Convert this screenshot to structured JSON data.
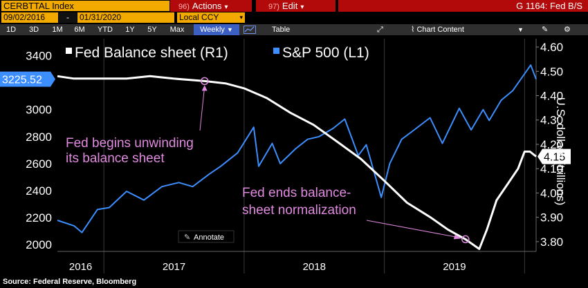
{
  "toolbar": {
    "ticker": "CERBTTAL Index",
    "actions_key": "96)",
    "actions_label": "Actions",
    "edit_key": "97)",
    "edit_label": "Edit",
    "page_title": "G 1164: Fed B/S",
    "date_from": "09/02/2016",
    "date_sep": "-",
    "date_to": "01/31/2020",
    "currency": "Local CCY",
    "periods": [
      "1D",
      "3D",
      "1M",
      "6M",
      "YTD",
      "1Y",
      "5Y",
      "Max"
    ],
    "frequency": "Weekly",
    "table_label": "Table",
    "chart_content_label": "Chart Content"
  },
  "colors": {
    "accent": "#f2a900",
    "button_red": "#b20a0a",
    "fed_series": "#ffffff",
    "spx_series": "#3d8fff",
    "annotation": "#e08ae0"
  },
  "chart_data": {
    "type": "line",
    "legend": [
      "Fed Balance sheet (R1)",
      "S&P 500 (L1)"
    ],
    "y_left": {
      "min": 1950,
      "max": 3500,
      "ticks": [
        2000,
        2200,
        2400,
        2600,
        2800,
        3000,
        3200,
        3400
      ]
    },
    "y_right": {
      "label": "U.S. dollars (trillions)",
      "min": 3.76,
      "max": 4.62,
      "ticks": [
        "3.80",
        "3.90",
        "4.00",
        "4.10",
        "4.20",
        "4.30",
        "4.40",
        "4.50",
        "4.60"
      ]
    },
    "x": {
      "start": "2016-09-02",
      "end": "2020-01-31",
      "labels": [
        "2016",
        "2017",
        "2018",
        "2019"
      ]
    },
    "last_values": {
      "left": "3225.52",
      "right": "4.15"
    },
    "series": [
      {
        "name": "S&P 500 (L1)",
        "axis": "left",
        "points": [
          [
            "2016-09-02",
            2180
          ],
          [
            "2016-10-15",
            2140
          ],
          [
            "2016-11-05",
            2090
          ],
          [
            "2016-12-15",
            2260
          ],
          [
            "2017-01-15",
            2275
          ],
          [
            "2017-03-01",
            2395
          ],
          [
            "2017-04-15",
            2330
          ],
          [
            "2017-06-01",
            2430
          ],
          [
            "2017-07-15",
            2460
          ],
          [
            "2017-08-20",
            2430
          ],
          [
            "2017-10-01",
            2520
          ],
          [
            "2017-11-01",
            2580
          ],
          [
            "2017-12-15",
            2680
          ],
          [
            "2018-01-26",
            2870
          ],
          [
            "2018-02-08",
            2580
          ],
          [
            "2018-03-15",
            2750
          ],
          [
            "2018-04-05",
            2600
          ],
          [
            "2018-05-15",
            2710
          ],
          [
            "2018-06-15",
            2780
          ],
          [
            "2018-07-15",
            2800
          ],
          [
            "2018-08-20",
            2860
          ],
          [
            "2018-09-20",
            2930
          ],
          [
            "2018-10-25",
            2660
          ],
          [
            "2018-11-15",
            2740
          ],
          [
            "2018-12-24",
            2350
          ],
          [
            "2019-01-15",
            2600
          ],
          [
            "2019-02-15",
            2780
          ],
          [
            "2019-03-15",
            2840
          ],
          [
            "2019-04-30",
            2940
          ],
          [
            "2019-06-01",
            2750
          ],
          [
            "2019-07-15",
            3010
          ],
          [
            "2019-08-15",
            2850
          ],
          [
            "2019-09-15",
            3000
          ],
          [
            "2019-10-01",
            2920
          ],
          [
            "2019-11-01",
            3070
          ],
          [
            "2019-12-01",
            3140
          ],
          [
            "2020-01-17",
            3330
          ],
          [
            "2020-01-31",
            3225.52
          ]
        ]
      },
      {
        "name": "Fed Balance sheet (R1)",
        "axis": "right",
        "points": [
          [
            "2016-09-02",
            4.48
          ],
          [
            "2016-10-15",
            4.47
          ],
          [
            "2016-12-01",
            4.47
          ],
          [
            "2017-01-15",
            4.47
          ],
          [
            "2017-03-01",
            4.47
          ],
          [
            "2017-05-01",
            4.48
          ],
          [
            "2017-07-01",
            4.47
          ],
          [
            "2017-09-20",
            4.46
          ],
          [
            "2017-11-15",
            4.45
          ],
          [
            "2018-01-01",
            4.43
          ],
          [
            "2018-03-01",
            4.39
          ],
          [
            "2018-05-01",
            4.33
          ],
          [
            "2018-07-01",
            4.28
          ],
          [
            "2018-09-01",
            4.21
          ],
          [
            "2018-11-01",
            4.14
          ],
          [
            "2019-01-01",
            4.05
          ],
          [
            "2019-03-01",
            3.96
          ],
          [
            "2019-05-01",
            3.9
          ],
          [
            "2019-06-15",
            3.85
          ],
          [
            "2019-07-31",
            3.81
          ],
          [
            "2019-09-05",
            3.77
          ],
          [
            "2019-09-25",
            3.85
          ],
          [
            "2019-10-20",
            3.97
          ],
          [
            "2019-11-15",
            4.03
          ],
          [
            "2019-12-15",
            4.1
          ],
          [
            "2020-01-01",
            4.17
          ],
          [
            "2020-01-15",
            4.17
          ],
          [
            "2020-01-31",
            4.15
          ]
        ]
      }
    ],
    "annotations": [
      {
        "text_lines": [
          "Fed begins unwinding",
          "its balance sheet"
        ],
        "date": "2017-09-20",
        "value": 4.46
      },
      {
        "text_lines": [
          "Fed ends balance-",
          "sheet normalization"
        ],
        "date": "2019-07-31",
        "value": 3.81
      }
    ],
    "annotate_label": "Annotate",
    "source": "Source: Federal Reserve, Bloomberg"
  }
}
